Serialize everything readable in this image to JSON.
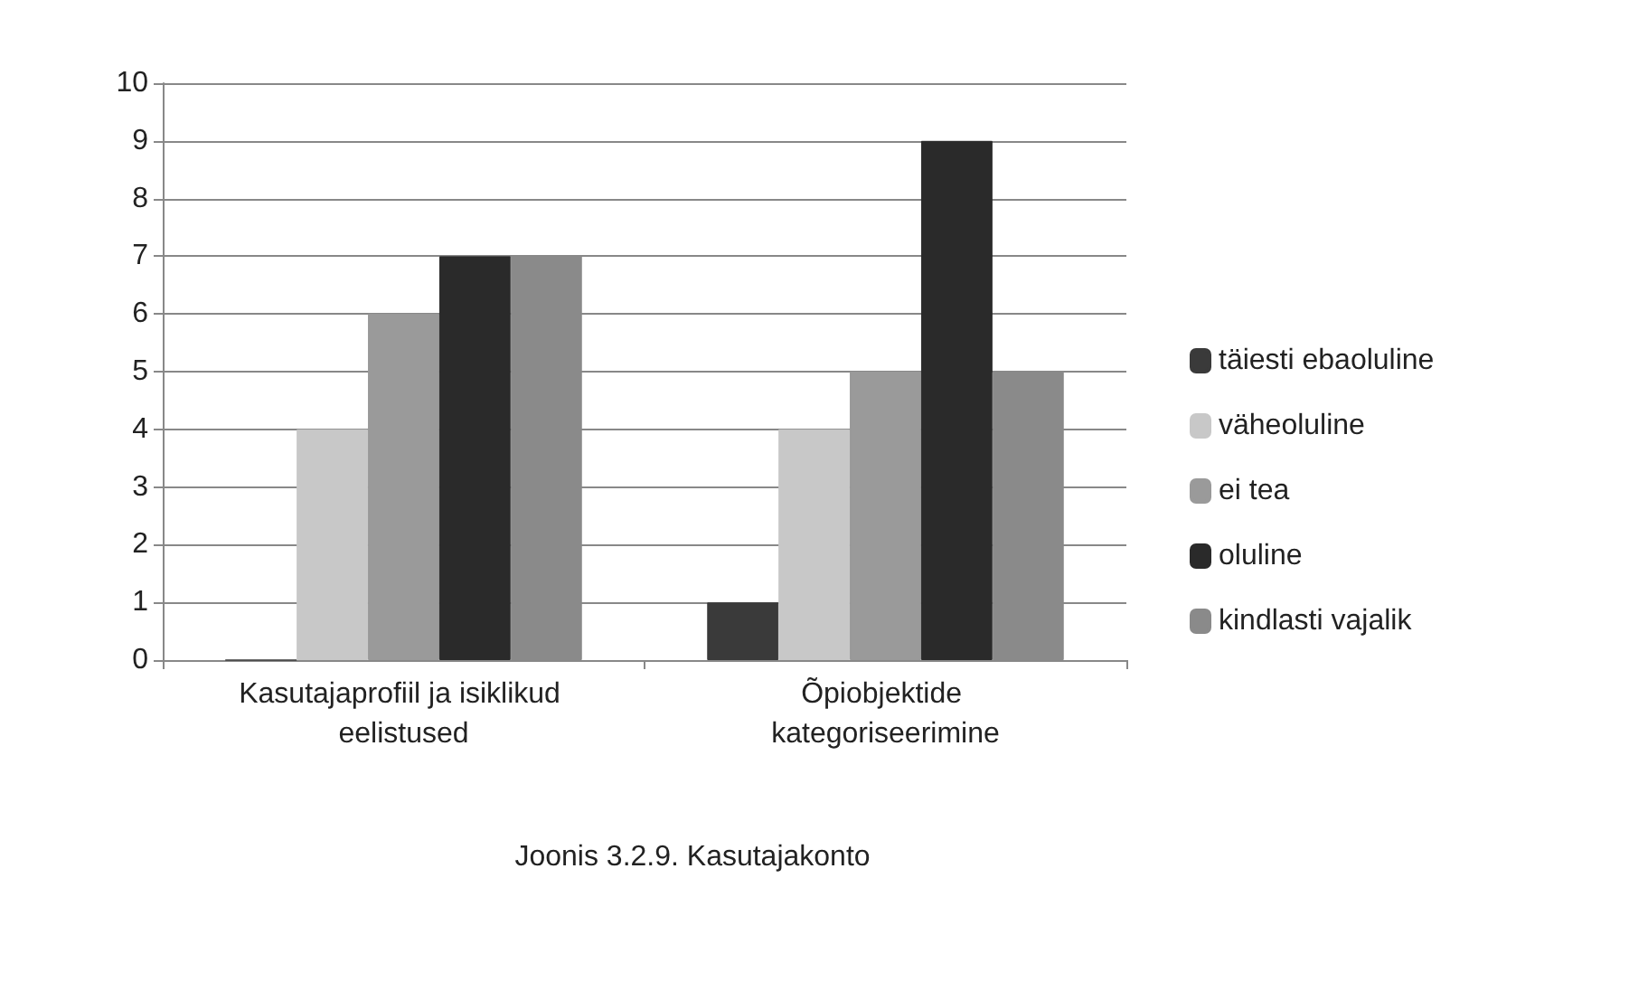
{
  "chart_data": {
    "type": "bar",
    "title": "Joonis 3.2.9. Kasutajakonto",
    "categories": [
      "Kasutajaprofiil ja isiklikud eelistused",
      "Õpiobjektide kategoriseerimine"
    ],
    "series": [
      {
        "name": "täiesti ebaoluline",
        "color": "#3a3a3a",
        "values": [
          0,
          1
        ]
      },
      {
        "name": "väheoluline",
        "color": "#c8c8c8",
        "values": [
          4,
          4
        ]
      },
      {
        "name": "ei tea",
        "color": "#9a9a9a",
        "values": [
          6,
          5
        ]
      },
      {
        "name": "oluline",
        "color": "#2a2a2a",
        "values": [
          7,
          9
        ]
      },
      {
        "name": "kindlasti vajalik",
        "color": "#8a8a8a",
        "values": [
          7,
          5
        ]
      }
    ],
    "ylim": [
      0,
      10
    ],
    "yticks": [
      0,
      1,
      2,
      3,
      4,
      5,
      6,
      7,
      8,
      9,
      10
    ],
    "grid": "y",
    "legend": "right"
  }
}
